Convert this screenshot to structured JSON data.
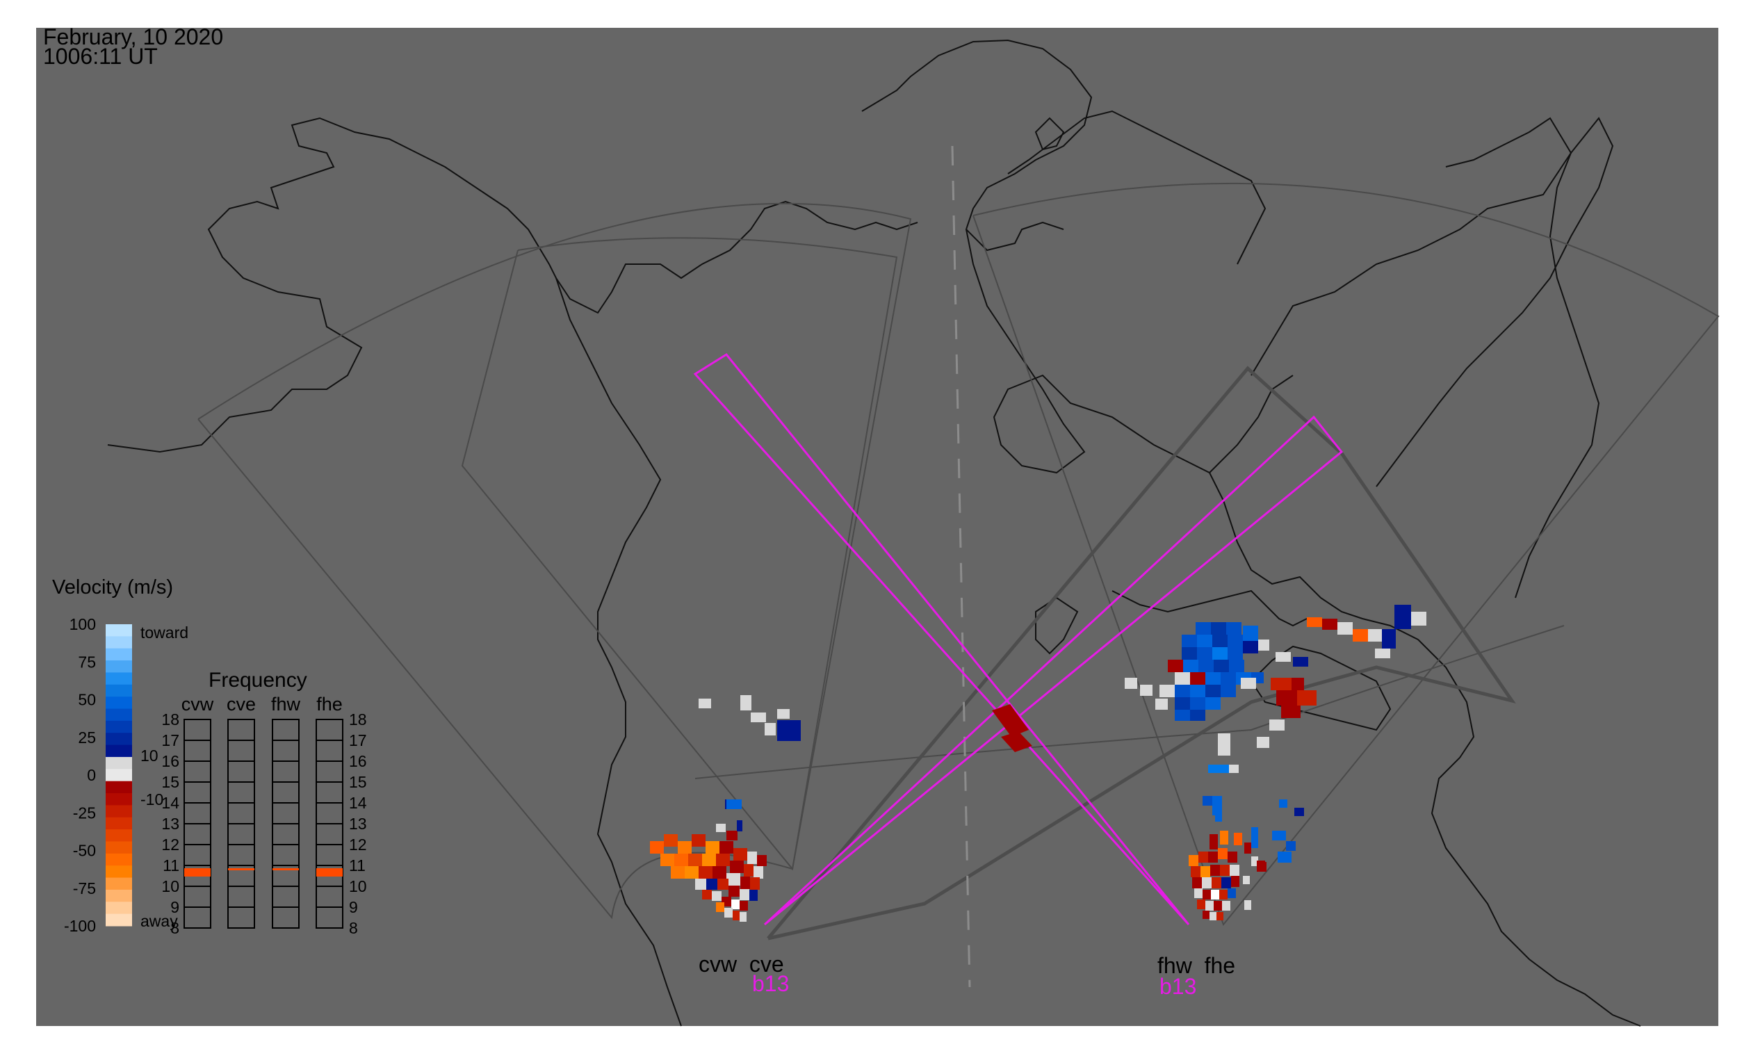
{
  "header": {
    "date": "February, 10 2020",
    "time": "1006:11 UT"
  },
  "legend": {
    "title": "Velocity (m/s)",
    "ticks": [
      "100",
      "75",
      "50",
      "25",
      "0",
      "-25",
      "-50",
      "-75",
      "-100"
    ],
    "toward_label": "toward",
    "away_label": "away",
    "threshold_pos": "10",
    "threshold_neg": "-10"
  },
  "frequency": {
    "title": "Frequency",
    "radars": [
      "cvw",
      "cve",
      "fhw",
      "fhe"
    ],
    "scale": [
      "18",
      "17",
      "16",
      "15",
      "14",
      "13",
      "12",
      "11",
      "10",
      "9",
      "8"
    ],
    "selected_mhz": [
      11,
      11,
      11,
      11
    ]
  },
  "radar_sites": {
    "west_pair": "cvw  cve",
    "east_pair": "fhw  fhe",
    "west_beam": "b13",
    "east_beam": "b13"
  },
  "colors": {
    "background": "#666666",
    "beam": "#e61ce6",
    "toward_dark": "#00158f",
    "toward_light": "#9fd4ff",
    "away_dark": "#a30000",
    "away_light": "#ffdcb9",
    "neutral": "#d9d9d9"
  }
}
